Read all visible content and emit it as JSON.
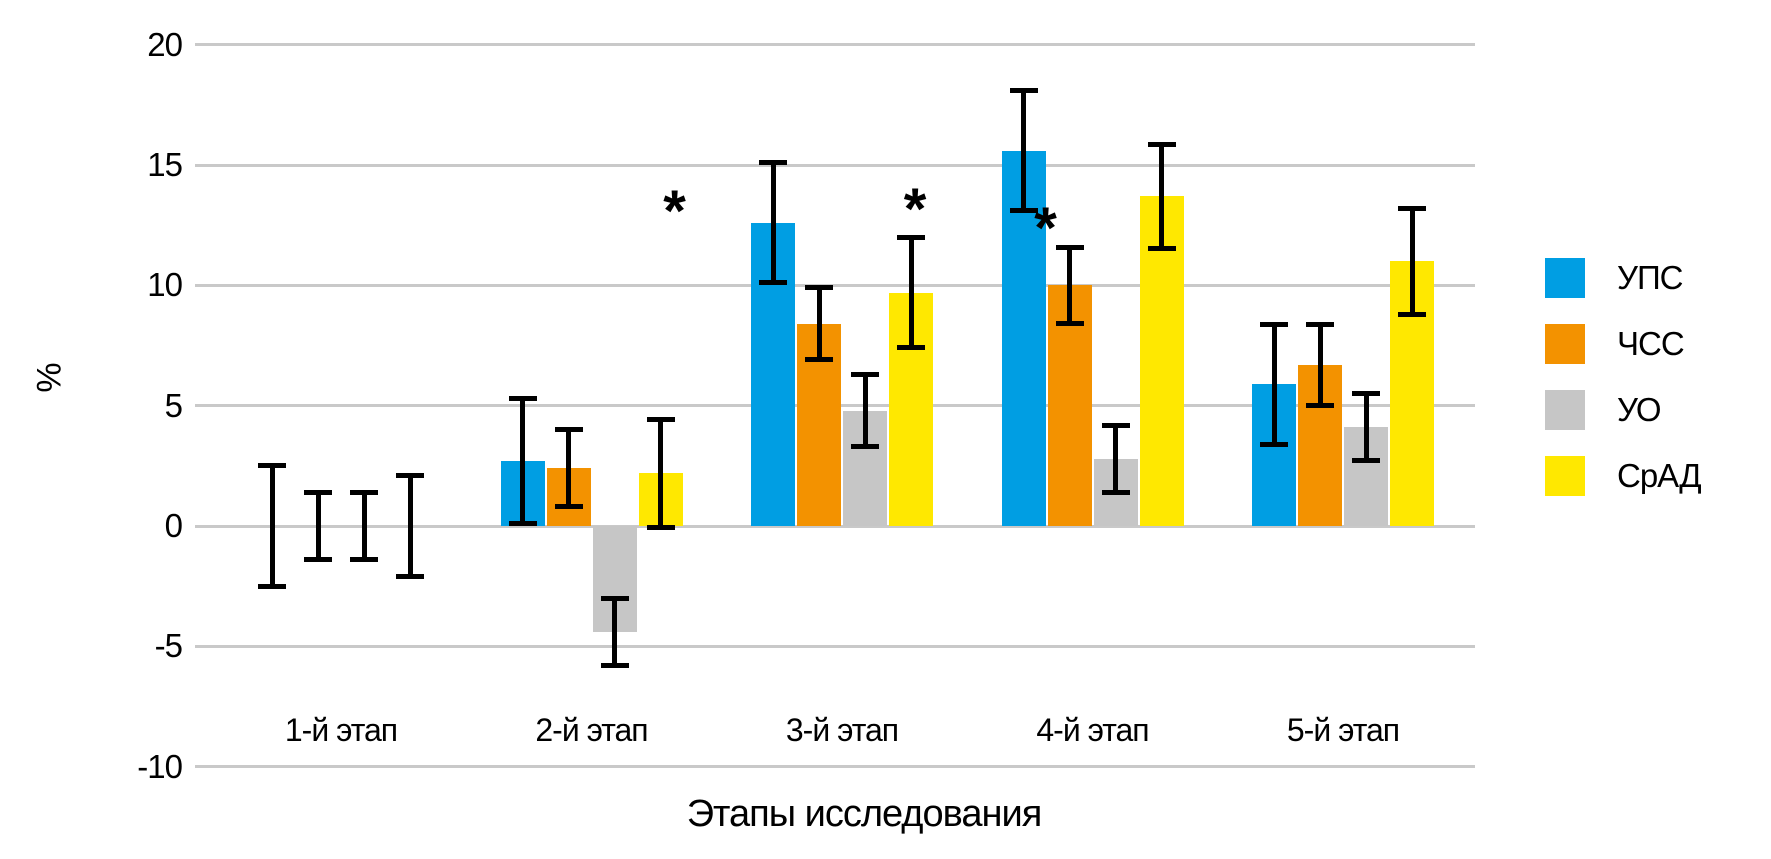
{
  "figure": {
    "background": "#FFFFFF",
    "text_color": "#000000",
    "gridline_color": "#C9C9C9"
  },
  "chart_data": {
    "type": "bar",
    "title": "",
    "xlabel": "Этапы исследования",
    "ylabel": "%",
    "ylim": [
      -10,
      20
    ],
    "yticks": [
      20,
      15,
      10,
      5,
      0,
      -5,
      -10
    ],
    "grid": true,
    "legend_position": "right",
    "categories": [
      "1-й этап",
      "2-й этап",
      "3-й этап",
      "4-й этап",
      "5-й этап"
    ],
    "series": [
      {
        "name": "УПС",
        "color": "#009EE3",
        "values": [
          0,
          2.7,
          12.6,
          15.6,
          5.9
        ],
        "errors": [
          2.6,
          2.7,
          2.6,
          2.6,
          2.6
        ]
      },
      {
        "name": "ЧСС",
        "color": "#F39200",
        "values": [
          0,
          2.4,
          8.4,
          10.0,
          6.7
        ],
        "errors": [
          1.5,
          1.7,
          1.6,
          1.7,
          1.8
        ]
      },
      {
        "name": "УО",
        "color": "#C6C6C6",
        "values": [
          0,
          -4.4,
          4.8,
          2.8,
          4.1
        ],
        "errors": [
          1.5,
          1.5,
          1.6,
          1.5,
          1.5
        ]
      },
      {
        "name": "СрАД",
        "color": "#FFE800",
        "values": [
          0,
          2.2,
          9.7,
          13.7,
          11.0
        ],
        "errors": [
          2.2,
          2.35,
          2.4,
          2.25,
          2.3
        ]
      }
    ],
    "annotations": [
      {
        "symbol": "*",
        "category_index": 1,
        "series_index": 3,
        "value": 13.5,
        "dx": 14
      },
      {
        "symbol": "*",
        "category_index": 2,
        "series_index": 3,
        "value": 13.6,
        "dx": 4
      },
      {
        "symbol": "*",
        "category_index": 3,
        "series_index": 0,
        "value": 12.8,
        "dx": 22
      }
    ]
  }
}
